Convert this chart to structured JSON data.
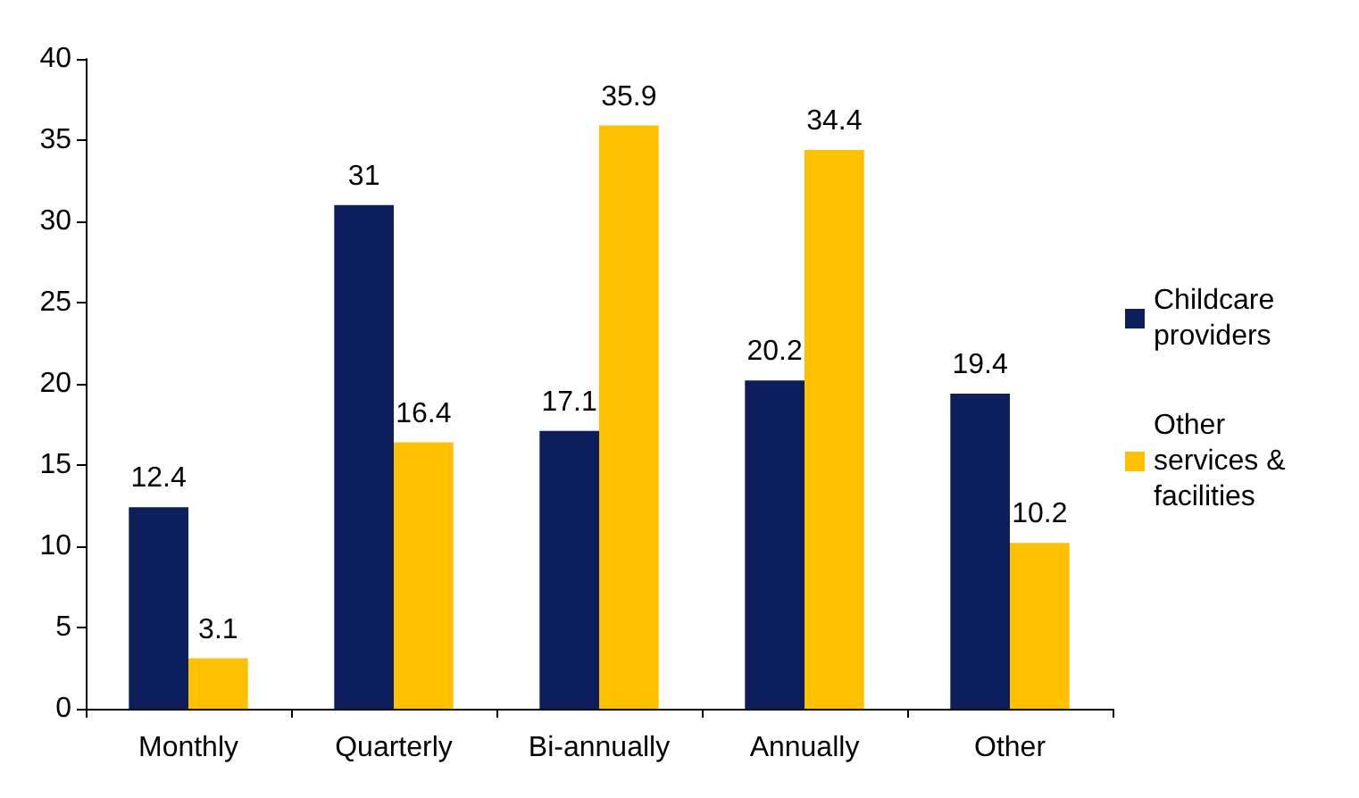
{
  "chart_data": {
    "type": "bar",
    "categories": [
      "Monthly",
      "Quarterly",
      "Bi-annually",
      "Annually",
      "Other"
    ],
    "series": [
      {
        "name": "Childcare providers",
        "color": "#0c1e5b",
        "values": [
          12.4,
          31,
          17.1,
          20.2,
          19.4
        ]
      },
      {
        "name": "Other services & facilities",
        "color": "#ffc000",
        "values": [
          3.1,
          16.4,
          35.9,
          34.4,
          10.2
        ]
      }
    ],
    "ylim": [
      0,
      40
    ],
    "yticks": [
      0,
      5,
      10,
      15,
      20,
      25,
      30,
      35,
      40
    ],
    "grid": false,
    "legend": "right",
    "data_labels": true
  }
}
